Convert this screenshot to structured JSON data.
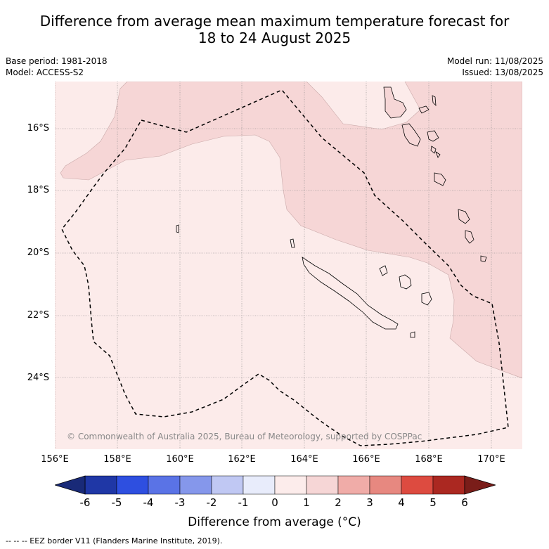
{
  "title_line1": "Difference from average mean maximum temperature forecast for",
  "title_line2": "18 to 24 August 2025",
  "base_period": "Base period: 1981-2018",
  "model": "Model: ACCESS-S2",
  "model_run": "Model run: 11/08/2025",
  "issued": "Issued: 13/08/2025",
  "credit": "© Commonwealth of Australia 2025, Bureau of Meteorology, supported by COSPPac",
  "lat_labels": [
    "16°S",
    "18°S",
    "20°S",
    "22°S",
    "24°S"
  ],
  "lon_labels": [
    "156°E",
    "158°E",
    "160°E",
    "162°E",
    "164°E",
    "166°E",
    "168°E",
    "170°E"
  ],
  "colorbar": {
    "ticks": [
      "-6",
      "-5",
      "-4",
      "-3",
      "-2",
      "-1",
      "0",
      "1",
      "2",
      "3",
      "4",
      "5",
      "6"
    ],
    "colors": [
      "#1f37a6",
      "#2e4fe0",
      "#5a73e6",
      "#8597eb",
      "#c0c8f3",
      "#e8ecfb",
      "#fceceb",
      "#f6d6d6",
      "#f0aca8",
      "#e78880",
      "#dd4b40",
      "#ab2821"
    ],
    "under_color": "#192a78",
    "over_color": "#7a1d19",
    "label": "Difference from average (°C)"
  },
  "map_colors": {
    "band_0_1": "#fcebea",
    "band_1_2": "#f6d6d6"
  },
  "footnote": "-- -- -- EEZ border V11 (Flanders Marine Institute, 2019)."
}
